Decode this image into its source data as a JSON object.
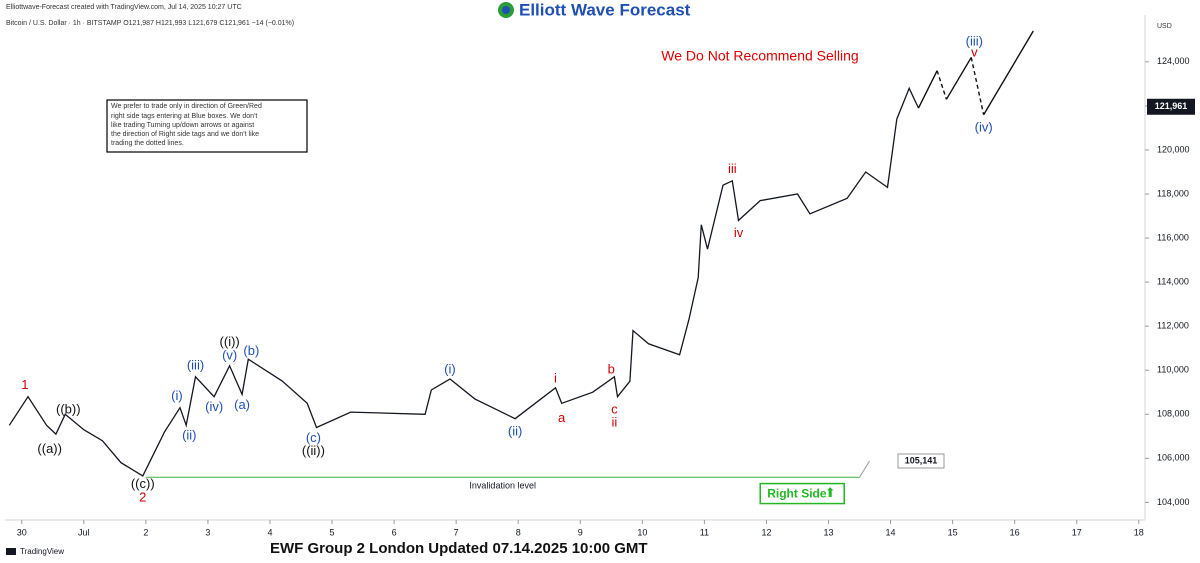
{
  "chart_data": {
    "type": "line",
    "credit": "Elliottwave-Forecast created with TradingView.com, Jul 14, 2025 10:27 UTC",
    "symbol_header": "Bitcoin / U.S. Dollar · 1h · BITSTAMP   O121,987  H121,993  L121,679  C121,961  −14 (−0.01%)",
    "logo": "Elliott Wave Forecast",
    "currency": "USD",
    "headline": "We Do Not Recommend Selling",
    "note": [
      "We prefer to trade only in direction of Green/Red",
      "right side tags entering at Blue boxes. We don't",
      "like trading Turning up/down arrows or against",
      "the direction of Right side tags and we don't like",
      "trading the dotted lines."
    ],
    "footer": "EWF Group 2 London Updated 07.14.2025 10:00 GMT",
    "platform": "TradingView",
    "color": "#131722",
    "x": [
      -0.2,
      0.1,
      0.4,
      0.55,
      0.7,
      1.0,
      1.3,
      1.6,
      1.95,
      2.3,
      2.55,
      2.65,
      2.8,
      3.1,
      3.35,
      3.55,
      3.65,
      4.2,
      4.6,
      4.75,
      5.3,
      6.5,
      6.6,
      6.9,
      7.3,
      7.95,
      8.6,
      8.7,
      9.2,
      9.55,
      9.6,
      9.8,
      9.85,
      10.1,
      10.6,
      10.75,
      10.9,
      10.95,
      11.05,
      11.3,
      11.45,
      11.55,
      11.9,
      12.5,
      12.7,
      13.3,
      13.6,
      13.95,
      14.1,
      14.3,
      14.45
    ],
    "values": [
      107500,
      108800,
      107500,
      107100,
      108000,
      107300,
      106800,
      105800,
      105200,
      107200,
      108300,
      107500,
      109700,
      108800,
      110200,
      108900,
      110500,
      109500,
      108500,
      107400,
      108100,
      108000,
      109100,
      109600,
      108700,
      107800,
      109200,
      108500,
      109000,
      109700,
      108800,
      109500,
      111800,
      111200,
      110700,
      112300,
      114200,
      116600,
      115500,
      118400,
      118600,
      116800,
      117700,
      118000,
      117100,
      117800,
      119000,
      118300,
      121400,
      122800,
      121900
    ],
    "projection": {
      "x": [
        14.45,
        14.75,
        14.9,
        15.3,
        15.5,
        16.3
      ],
      "values": [
        121900,
        123600,
        122300,
        124200,
        121600,
        125400
      ],
      "dashed": [
        false,
        true,
        false,
        true,
        false
      ]
    },
    "last_price": {
      "value": 121961,
      "label": "121,961",
      "color": "#131722"
    },
    "invalidation": {
      "value": 105141,
      "label": "105,141",
      "text": "Invalidation level",
      "x": [
        2,
        13.5
      ],
      "color": "#3cb43c"
    },
    "right_side": {
      "text": "Right Side",
      "arrow": "⬆",
      "x": 13.35,
      "y": 104400,
      "color": "#22b822"
    },
    "annotations": [
      {
        "text": "1",
        "x": 0.05,
        "y": 109300,
        "color": "#d00000"
      },
      {
        "text": "((b))",
        "x": 0.75,
        "y": 108200,
        "color": "#111111"
      },
      {
        "text": "((a))",
        "x": 0.45,
        "y": 106400,
        "color": "#111111"
      },
      {
        "text": "((c))",
        "x": 1.95,
        "y": 104800,
        "color": "#111111"
      },
      {
        "text": "2",
        "x": 1.95,
        "y": 104200,
        "color": "#d00000"
      },
      {
        "text": "(i)",
        "x": 2.5,
        "y": 108800,
        "color": "#1f4fb4"
      },
      {
        "text": "(ii)",
        "x": 2.7,
        "y": 107000,
        "color": "#1f4fb4"
      },
      {
        "text": "(iii)",
        "x": 2.8,
        "y": 110200,
        "color": "#1f4fb4"
      },
      {
        "text": "(iv)",
        "x": 3.1,
        "y": 108300,
        "color": "#1f4fb4"
      },
      {
        "text": "(v)",
        "x": 3.35,
        "y": 110650,
        "color": "#1f4fb4"
      },
      {
        "text": "((i))",
        "x": 3.35,
        "y": 111250,
        "color": "#111111"
      },
      {
        "text": "(b)",
        "x": 3.7,
        "y": 110850,
        "color": "#1f4fb4"
      },
      {
        "text": "(a)",
        "x": 3.55,
        "y": 108400,
        "color": "#1f4fb4"
      },
      {
        "text": "(c)",
        "x": 4.7,
        "y": 106900,
        "color": "#1f4fb4"
      },
      {
        "text": "((ii))",
        "x": 4.7,
        "y": 106300,
        "color": "#111111"
      },
      {
        "text": "(i)",
        "x": 6.9,
        "y": 110000,
        "color": "#1f4fb4"
      },
      {
        "text": "(ii)",
        "x": 7.95,
        "y": 107200,
        "color": "#1f4fb4"
      },
      {
        "text": "i",
        "x": 8.6,
        "y": 109600,
        "color": "#d00000"
      },
      {
        "text": "a",
        "x": 8.7,
        "y": 107800,
        "color": "#d00000"
      },
      {
        "text": "b",
        "x": 9.5,
        "y": 110000,
        "color": "#d00000"
      },
      {
        "text": "c",
        "x": 9.55,
        "y": 108200,
        "color": "#d00000"
      },
      {
        "text": "ii",
        "x": 9.55,
        "y": 107600,
        "color": "#d00000"
      },
      {
        "text": "iii",
        "x": 11.45,
        "y": 119100,
        "color": "#d00000"
      },
      {
        "text": "iv",
        "x": 11.55,
        "y": 116200,
        "color": "#d00000"
      },
      {
        "text": "(iii)",
        "x": 15.35,
        "y": 124900,
        "color": "#1f4fb4"
      },
      {
        "text": "v",
        "x": 15.35,
        "y": 124400,
        "color": "#d00000"
      },
      {
        "text": "(iv)",
        "x": 15.5,
        "y": 121000,
        "color": "#1f4fb4"
      }
    ],
    "xlim": [
      -0.27,
      18.1
    ],
    "xticks": [
      {
        "value": 0,
        "label": "30"
      },
      {
        "value": 1,
        "label": "Jul"
      },
      2,
      3,
      4,
      5,
      6,
      7,
      8,
      9,
      10,
      11,
      12,
      13,
      14,
      15,
      16,
      17,
      18
    ],
    "ylim": [
      103200,
      125900
    ],
    "yticks": [
      {
        "value": 104000,
        "label": "104,000"
      },
      {
        "value": 106000,
        "label": "106,000"
      },
      {
        "value": 108000,
        "label": "108,000"
      },
      {
        "value": 110000,
        "label": "110,000"
      },
      {
        "value": 112000,
        "label": "112,000"
      },
      {
        "value": 114000,
        "label": "114,000"
      },
      {
        "value": 116000,
        "label": "116,000"
      },
      {
        "value": 118000,
        "label": "118,000"
      },
      {
        "value": 120000,
        "label": "120,000"
      },
      {
        "value": 122000,
        "label": "122,000"
      },
      {
        "value": 124000,
        "label": "124,000"
      }
    ],
    "grid": false
  }
}
